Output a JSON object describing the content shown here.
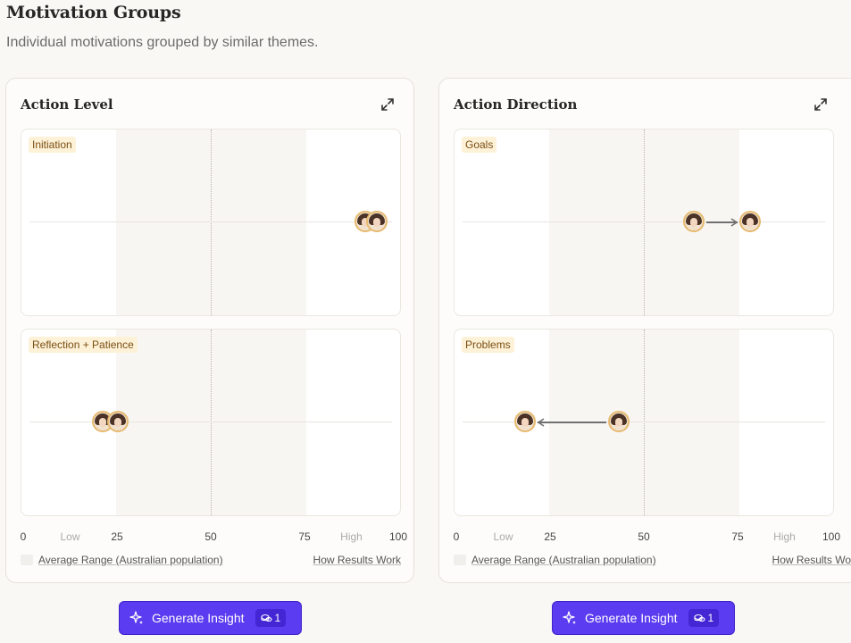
{
  "page": {
    "title": "Motivation Groups",
    "subtitle": "Individual motivations grouped by similar themes."
  },
  "scale": {
    "labels": [
      {
        "value": 0,
        "text": "0",
        "muted": false
      },
      {
        "value": 12.5,
        "text": "Low",
        "muted": true
      },
      {
        "value": 25,
        "text": "25",
        "muted": false
      },
      {
        "value": 50,
        "text": "50",
        "muted": false
      },
      {
        "value": 75,
        "text": "75",
        "muted": false
      },
      {
        "value": 87.5,
        "text": "High",
        "muted": true
      },
      {
        "value": 100,
        "text": "100",
        "muted": false
      }
    ],
    "average_range": [
      25,
      75
    ]
  },
  "cards": [
    {
      "title": "Action Level",
      "legend": "Average Range (Australian population)",
      "how_link": "How Results Work",
      "button_label": "Generate Insight",
      "button_count": "1",
      "panels": [
        {
          "label": "Initiation",
          "markers": [
            91,
            94
          ],
          "arrow": null
        },
        {
          "label": "Reflection + Patience",
          "markers": [
            21,
            25
          ],
          "arrow": null
        }
      ]
    },
    {
      "title": "Action Direction",
      "legend": "Average Range (Australian population)",
      "how_link": "How Results Work",
      "button_label": "Generate Insight",
      "button_count": "1",
      "panels": [
        {
          "label": "Goals",
          "markers": [
            63,
            78
          ],
          "arrow": {
            "from": 63,
            "to": 78
          }
        },
        {
          "label": "Problems",
          "markers": [
            43,
            18
          ],
          "arrow": {
            "from": 43,
            "to": 18
          }
        }
      ]
    }
  ],
  "colors": {
    "accent": "#5b3cf0",
    "tag_bg": "#fdf1d8",
    "band": "#f8f6f2",
    "avatar_ring": "#e6b96f"
  }
}
